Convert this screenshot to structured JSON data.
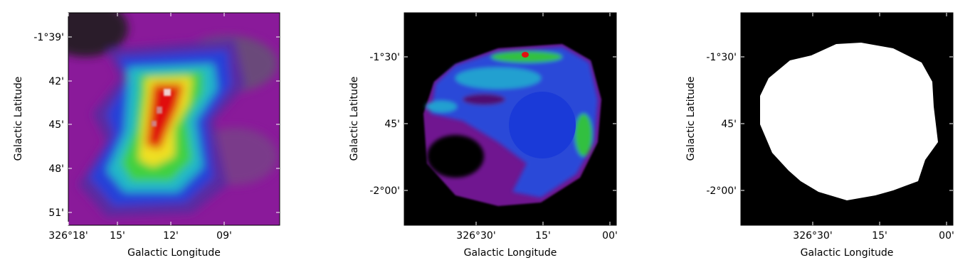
{
  "panels": [
    {
      "x_label": "Galactic Longitude",
      "y_label": "Galactic Latitude",
      "x_ticks": [
        "326°18'",
        "15'",
        "12'",
        "09'"
      ],
      "y_ticks": [
        "-1°39'",
        "42'",
        "45'",
        "48'",
        "51'"
      ]
    },
    {
      "x_label": "Galactic Longitude",
      "y_label": "Galactic Latitude",
      "x_ticks": [
        "326°30'",
        "15'",
        "00'"
      ],
      "y_ticks": [
        "-1°30'",
        "45'",
        "-2°00'"
      ]
    },
    {
      "x_label": "Galactic Longitude",
      "y_label": "Galactic Latitude",
      "x_ticks": [
        "326°30'",
        "15'",
        "00'"
      ],
      "y_ticks": [
        "-1°30'",
        "45'",
        "-2°00'"
      ]
    }
  ]
}
